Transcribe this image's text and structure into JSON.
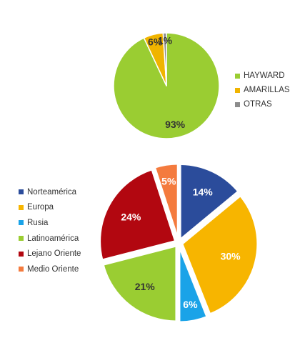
{
  "chart_data": [
    {
      "type": "pie",
      "title": "",
      "categories": [
        "HAYWARD",
        "AMARILLAS",
        "OTRAS"
      ],
      "values": [
        93,
        6,
        1
      ],
      "labels": [
        "93%",
        "6%",
        "1%"
      ],
      "colors": [
        "#9ACD32",
        "#F0B400",
        "#8C8C8C"
      ],
      "label_colors": [
        "#333333",
        "#333333",
        "#333333"
      ],
      "legend_position": "right"
    },
    {
      "type": "pie",
      "title": "",
      "categories": [
        "Norteamérica",
        "Europa",
        "Rusia",
        "Latinoamérica",
        "Lejano Oriente",
        "Medio Oriente"
      ],
      "values": [
        14,
        30,
        6,
        21,
        24,
        5
      ],
      "labels": [
        "14%",
        "30%",
        "6%",
        "21%",
        "24%",
        "5%"
      ],
      "colors": [
        "#2B4C9B",
        "#F7B500",
        "#1AA3E8",
        "#9ACD32",
        "#B20710",
        "#F47B3E"
      ],
      "label_colors": [
        "#ffffff",
        "#ffffff",
        "#ffffff",
        "#333333",
        "#ffffff",
        "#ffffff"
      ],
      "legend_position": "left",
      "exploded": true
    }
  ]
}
